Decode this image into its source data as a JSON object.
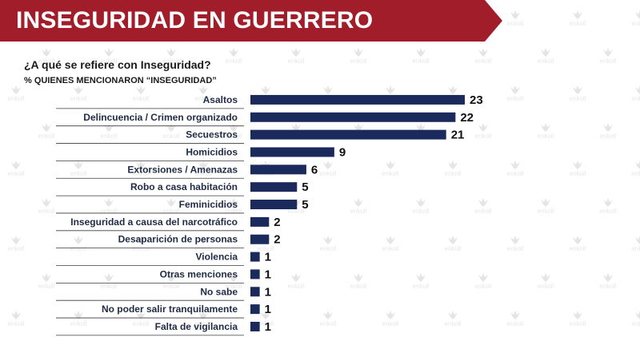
{
  "header": {
    "title": "INSEGURIDAD EN GUERRERO",
    "banner_color": "#a11d2a"
  },
  "question": "¿A qué se refiere con Inseguridad?",
  "subheading": "% QUIENES MENCIONARON “INSEGURIDAD”",
  "watermark": {
    "text": "enkoll",
    "icon": "enkoll-leaf-icon"
  },
  "colors": {
    "bar": "#1b2a5c",
    "separator": "#3a3a3a"
  },
  "chart_data": {
    "type": "bar",
    "orientation": "horizontal",
    "title": "",
    "xlabel": "",
    "ylabel": "",
    "categories": [
      "Asaltos",
      "Delincuencia / Crimen organizado",
      "Secuestros",
      "Homicidios",
      "Extorsiones / Amenazas",
      "Robo a casa habitación",
      "Feminicidios",
      "Inseguridad a causa del narcotráfico",
      "Desaparición de personas",
      "Violencia",
      "Otras menciones",
      "No sabe",
      "No poder salir tranquilamente",
      "Falta de vigilancia"
    ],
    "values": [
      23,
      22,
      21,
      9,
      6,
      5,
      5,
      2,
      2,
      1,
      1,
      1,
      1,
      1
    ],
    "xlim": [
      0,
      23
    ],
    "grid": false,
    "legend": "none"
  }
}
